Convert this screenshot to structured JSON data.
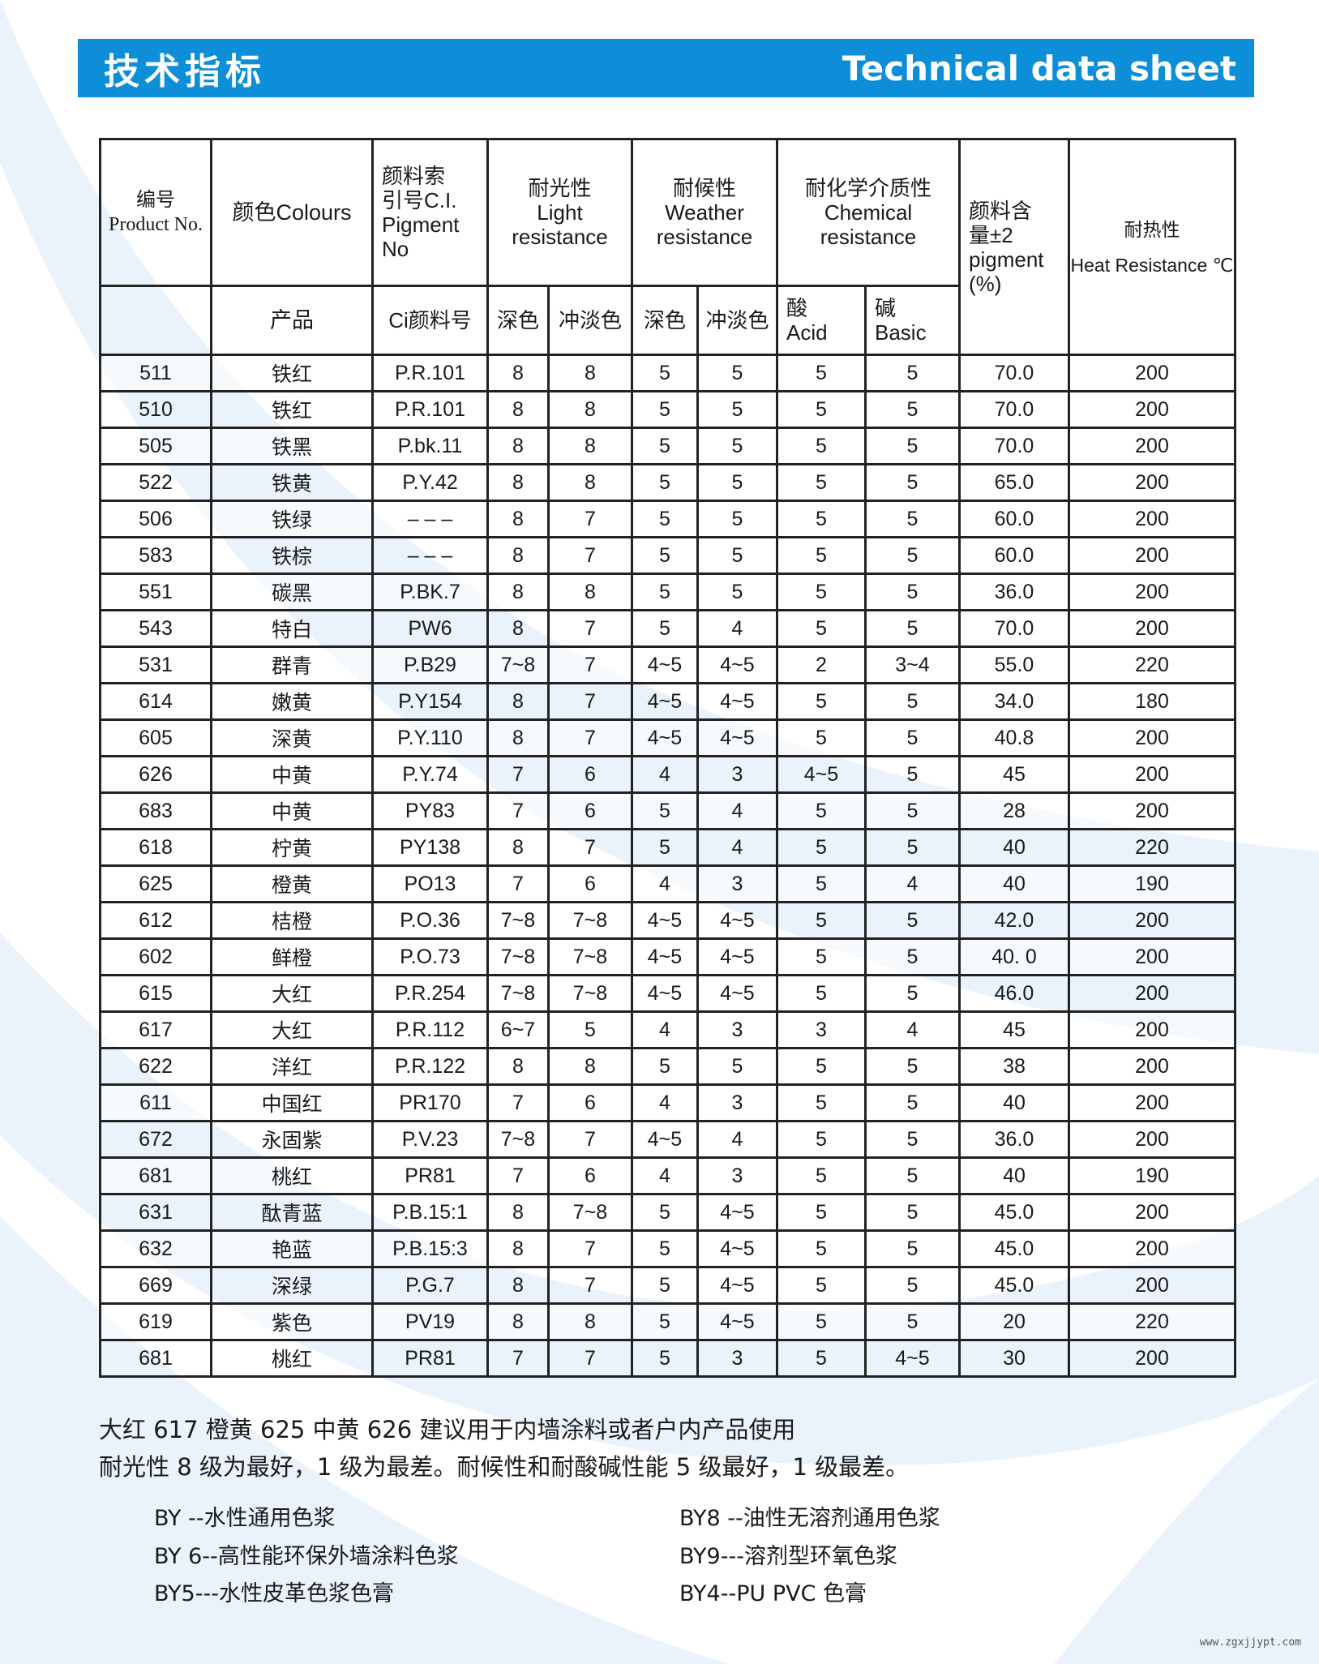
{
  "banner": {
    "title_zh": "技术指标",
    "title_en": "Technical data sheet",
    "color": "#0d8ed8"
  },
  "table": {
    "headers": {
      "product_no": "编号\nProduct No.",
      "colours": "颜色Colours",
      "ci": "颜料索\n引号C.I.\nPigment\nNo",
      "light": "耐光性\nLight\nresistance",
      "weather": "耐候性\nWeather\nresistance",
      "chemical": "耐化学介质性\nChemical\nresistance",
      "pigment": "颜料含\n量±2\npigment\n(%)",
      "heat": "耐热性\nHeat Resistance ℃",
      "product": "产品",
      "ci_no": "Ci颜料号",
      "light_deep": "深色",
      "light_tint": "冲淡色",
      "weather_deep": "深色",
      "weather_tint": "冲淡色",
      "acid": "酸\nAcid",
      "basic": "碱\nBasic"
    },
    "rows": [
      [
        "511",
        "铁红",
        "P.R.101",
        "8",
        "8",
        "5",
        "5",
        "5",
        "5",
        "70.0",
        "200"
      ],
      [
        "510",
        "铁红",
        "P.R.101",
        "8",
        "8",
        "5",
        "5",
        "5",
        "5",
        "70.0",
        "200"
      ],
      [
        "505",
        "铁黑",
        "P.bk.11",
        "8",
        "8",
        "5",
        "5",
        "5",
        "5",
        "70.0",
        "200"
      ],
      [
        "522",
        "铁黄",
        "P.Y.42",
        "8",
        "8",
        "5",
        "5",
        "5",
        "5",
        "65.0",
        "200"
      ],
      [
        "506",
        "铁绿",
        "– – –",
        "8",
        "7",
        "5",
        "5",
        "5",
        "5",
        "60.0",
        "200"
      ],
      [
        "583",
        "铁棕",
        "– – –",
        "8",
        "7",
        "5",
        "5",
        "5",
        "5",
        "60.0",
        "200"
      ],
      [
        "551",
        "碳黑",
        "P.BK.7",
        "8",
        "8",
        "5",
        "5",
        "5",
        "5",
        "36.0",
        "200"
      ],
      [
        "543",
        "特白",
        "PW6",
        "8",
        "7",
        "5",
        "4",
        "5",
        "5",
        "70.0",
        "200"
      ],
      [
        "531",
        "群青",
        "P.B29",
        "7~8",
        "7",
        "4~5",
        "4~5",
        "2",
        "3~4",
        "55.0",
        "220"
      ],
      [
        "614",
        "嫩黄",
        "P.Y154",
        "8",
        "7",
        "4~5",
        "4~5",
        "5",
        "5",
        "34.0",
        "180"
      ],
      [
        "605",
        "深黄",
        "P.Y.110",
        "8",
        "7",
        "4~5",
        "4~5",
        "5",
        "5",
        "40.8",
        "200"
      ],
      [
        "626",
        "中黄",
        "P.Y.74",
        "7",
        "6",
        "4",
        "3",
        "4~5",
        "5",
        "45",
        "200"
      ],
      [
        "683",
        "中黄",
        "PY83",
        "7",
        "6",
        "5",
        "4",
        "5",
        "5",
        "28",
        "200"
      ],
      [
        "618",
        "柠黄",
        "PY138",
        "8",
        "7",
        "5",
        "4",
        "5",
        "5",
        "40",
        "220"
      ],
      [
        "625",
        "橙黄",
        "PO13",
        "7",
        "6",
        "4",
        "3",
        "5",
        "4",
        "40",
        "190"
      ],
      [
        "612",
        "桔橙",
        "P.O.36",
        "7~8",
        "7~8",
        "4~5",
        "4~5",
        "5",
        "5",
        "42.0",
        "200"
      ],
      [
        "602",
        "鲜橙",
        "P.O.73",
        "7~8",
        "7~8",
        "4~5",
        "4~5",
        "5",
        "5",
        "40. 0",
        "200"
      ],
      [
        "615",
        "大红",
        "P.R.254",
        "7~8",
        "7~8",
        "4~5",
        "4~5",
        "5",
        "5",
        "46.0",
        "200"
      ],
      [
        "617",
        "大红",
        "P.R.112",
        "6~7",
        "5",
        "4",
        "3",
        "3",
        "4",
        "45",
        "200"
      ],
      [
        "622",
        "洋红",
        "P.R.122",
        "8",
        "8",
        "5",
        "5",
        "5",
        "5",
        "38",
        "200"
      ],
      [
        "611",
        "中国红",
        "PR170",
        "7",
        "6",
        "4",
        "3",
        "5",
        "5",
        "40",
        "200"
      ],
      [
        "672",
        "永固紫",
        "P.V.23",
        "7~8",
        "7",
        "4~5",
        "4",
        "5",
        "5",
        "36.0",
        "200"
      ],
      [
        "681",
        "桃红",
        "PR81",
        "7",
        "6",
        "4",
        "3",
        "5",
        "5",
        "40",
        "190"
      ],
      [
        "631",
        "酞青蓝",
        "P.B.15:1",
        "8",
        "7~8",
        "5",
        "4~5",
        "5",
        "5",
        "45.0",
        "200"
      ],
      [
        "632",
        "艳蓝",
        "P.B.15:3",
        "8",
        "7",
        "5",
        "4~5",
        "5",
        "5",
        "45.0",
        "200"
      ],
      [
        "669",
        "深绿",
        "P.G.7",
        "8",
        "7",
        "5",
        "4~5",
        "5",
        "5",
        "45.0",
        "200"
      ],
      [
        "619",
        "紫色",
        "PV19",
        "8",
        "8",
        "5",
        "4~5",
        "5",
        "5",
        "20",
        "220"
      ],
      [
        "681",
        "桃红",
        "PR81",
        "7",
        "7",
        "5",
        "3",
        "5",
        "4~5",
        "30",
        "200"
      ]
    ]
  },
  "notes": [
    "大红 617  橙黄 625  中黄 626  建议用于内墙涂料或者户内产品使用",
    "耐光性 8 级为最好，1 级为最差。耐候性和耐酸碱性能 5 级最好，1 级最差。"
  ],
  "series": {
    "left": [
      "BY --水性通用色浆",
      "BY 6--高性能环保外墙涂料色浆",
      "BY5---水性皮革色浆色膏"
    ],
    "right": [
      "BY8 --油性无溶剂通用色浆",
      "BY9---溶剂型环氧色浆",
      "BY4--PU    PVC 色膏"
    ]
  },
  "watermark": "www.zgxjjypt.com"
}
